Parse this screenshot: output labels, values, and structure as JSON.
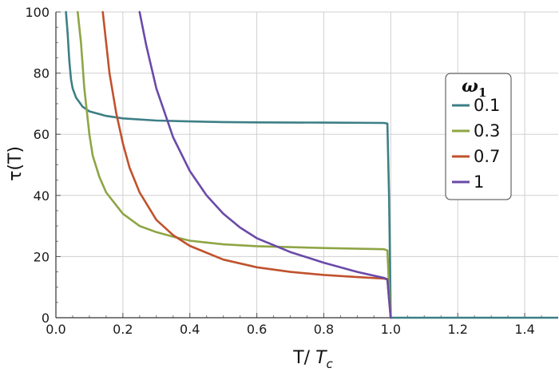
{
  "chart_data": {
    "type": "line",
    "xlabel": "T/ T_c",
    "ylabel": "τ(T)",
    "xlim": [
      0,
      1.5
    ],
    "ylim": [
      0,
      100
    ],
    "xticks": [
      "0.0",
      "0.2",
      "0.4",
      "0.6",
      "0.8",
      "1.0",
      "1.2",
      "1.4"
    ],
    "yticks": [
      "0",
      "20",
      "40",
      "60",
      "80",
      "100"
    ],
    "grid": true,
    "legend": {
      "title": "ω1",
      "placement": "right"
    },
    "series": [
      {
        "name": "0.1",
        "color": "#3d7f86",
        "points": [
          [
            0.03,
            100
          ],
          [
            0.035,
            93
          ],
          [
            0.04,
            84
          ],
          [
            0.045,
            78
          ],
          [
            0.05,
            75
          ],
          [
            0.06,
            72
          ],
          [
            0.08,
            69
          ],
          [
            0.1,
            67.5
          ],
          [
            0.15,
            66
          ],
          [
            0.2,
            65.2
          ],
          [
            0.3,
            64.5
          ],
          [
            0.4,
            64.2
          ],
          [
            0.5,
            64
          ],
          [
            0.6,
            63.9
          ],
          [
            0.8,
            63.8
          ],
          [
            0.98,
            63.7
          ],
          [
            0.99,
            63.5
          ],
          [
            0.995,
            40
          ],
          [
            1.0,
            0
          ],
          [
            1.5,
            0
          ]
        ]
      },
      {
        "name": "0.3",
        "color": "#8ea545",
        "points": [
          [
            0.065,
            100
          ],
          [
            0.075,
            90
          ],
          [
            0.085,
            75
          ],
          [
            0.095,
            65
          ],
          [
            0.1,
            60
          ],
          [
            0.11,
            53
          ],
          [
            0.13,
            46
          ],
          [
            0.15,
            41
          ],
          [
            0.2,
            34
          ],
          [
            0.25,
            30
          ],
          [
            0.3,
            28
          ],
          [
            0.35,
            26.5
          ],
          [
            0.4,
            25.2
          ],
          [
            0.5,
            24
          ],
          [
            0.6,
            23.4
          ],
          [
            0.8,
            22.8
          ],
          [
            0.98,
            22.4
          ],
          [
            0.99,
            22
          ],
          [
            0.995,
            10
          ],
          [
            1.0,
            0
          ]
        ]
      },
      {
        "name": "0.7",
        "color": "#c0522d",
        "points": [
          [
            0.14,
            100
          ],
          [
            0.15,
            90
          ],
          [
            0.16,
            80
          ],
          [
            0.18,
            67
          ],
          [
            0.2,
            57
          ],
          [
            0.22,
            49
          ],
          [
            0.25,
            41
          ],
          [
            0.3,
            32
          ],
          [
            0.35,
            27
          ],
          [
            0.4,
            23.5
          ],
          [
            0.5,
            19
          ],
          [
            0.6,
            16.5
          ],
          [
            0.7,
            15
          ],
          [
            0.8,
            14
          ],
          [
            0.9,
            13.3
          ],
          [
            0.98,
            12.8
          ],
          [
            0.99,
            12.5
          ],
          [
            0.995,
            6
          ],
          [
            1.0,
            0
          ]
        ]
      },
      {
        "name": "1",
        "color": "#6a4aa8",
        "points": [
          [
            0.25,
            100
          ],
          [
            0.27,
            89
          ],
          [
            0.3,
            75
          ],
          [
            0.35,
            59
          ],
          [
            0.4,
            48
          ],
          [
            0.45,
            40
          ],
          [
            0.5,
            34
          ],
          [
            0.55,
            29.5
          ],
          [
            0.6,
            26
          ],
          [
            0.7,
            21.5
          ],
          [
            0.8,
            18
          ],
          [
            0.9,
            15
          ],
          [
            0.98,
            13
          ],
          [
            0.99,
            12.6
          ],
          [
            0.995,
            6
          ],
          [
            1.0,
            0
          ]
        ]
      }
    ]
  }
}
